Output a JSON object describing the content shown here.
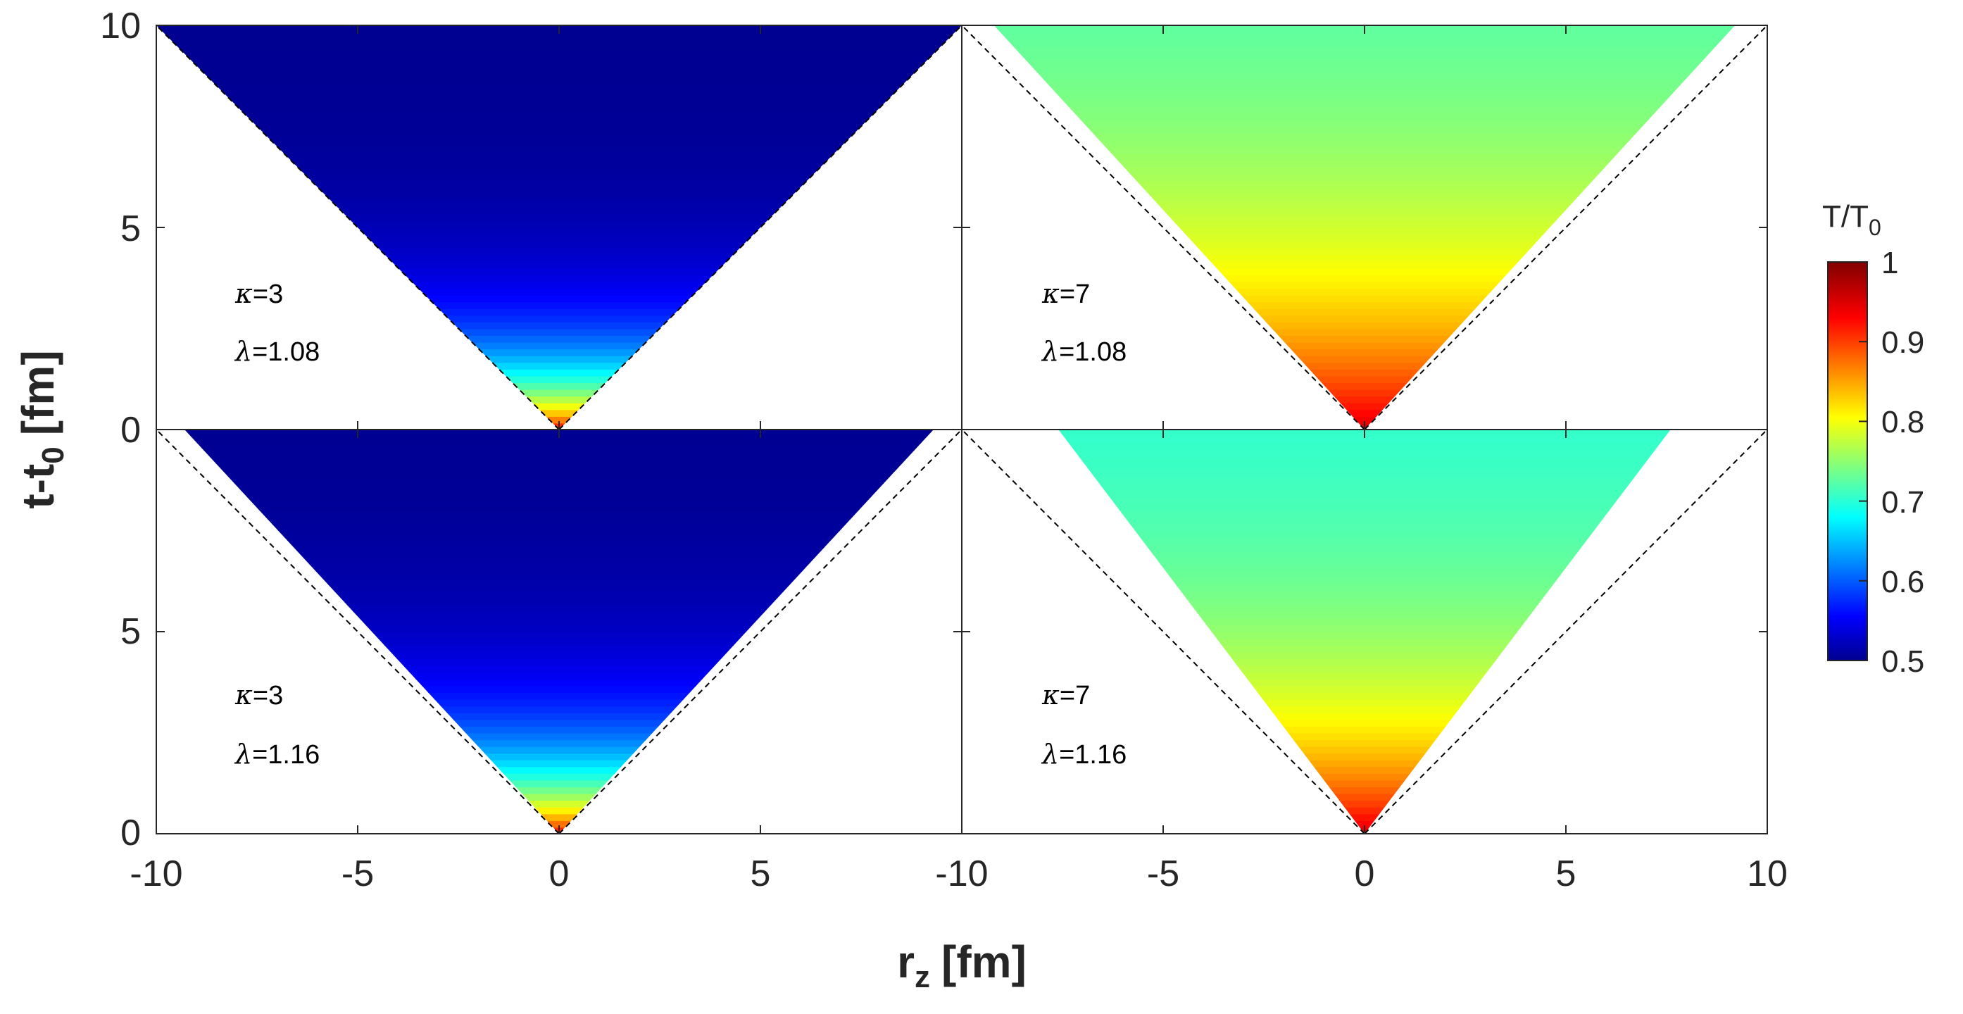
{
  "chart_data": {
    "type": "heatmap",
    "panels": [
      {
        "annotation": {
          "kappa_label": "κ",
          "kappa_value": "=3",
          "lambda_label": "λ",
          "lambda_value": "=1.08"
        },
        "outline_at_top": [
          -10.0,
          10.0
        ],
        "fill_profile": {
          "T_vertex": 0.93,
          "T_base": 0.5,
          "decay_fm": 1.6
        }
      },
      {
        "annotation": {
          "kappa_label": "κ",
          "kappa_value": "=7",
          "lambda_label": "λ",
          "lambda_value": "=1.08"
        },
        "outline_at_top": [
          -9.2,
          9.2
        ],
        "fill_profile": {
          "T_vertex": 0.95,
          "T_base": 0.7,
          "decay_fm": 4.5
        }
      },
      {
        "annotation": {
          "kappa_label": "κ",
          "kappa_value": "=3",
          "lambda_label": "λ",
          "lambda_value": "=1.16"
        },
        "outline_at_top": [
          -9.3,
          9.3
        ],
        "fill_profile": {
          "T_vertex": 0.93,
          "T_base": 0.5,
          "decay_fm": 1.8
        }
      },
      {
        "annotation": {
          "kappa_label": "κ",
          "kappa_value": "=7",
          "lambda_label": "λ",
          "lambda_value": "=1.16"
        },
        "outline_at_top": [
          -7.6,
          7.6
        ],
        "fill_profile": {
          "T_vertex": 0.95,
          "T_base": 0.69,
          "decay_fm": 3.5
        }
      }
    ],
    "x_axis": {
      "label_main": "r",
      "label_sub": "z",
      "label_unit": "[fm]",
      "range": [
        -10,
        10
      ],
      "ticks_left": [
        "-10",
        "-5",
        "0",
        "5"
      ],
      "ticks_right": [
        "-10",
        "-5",
        "0",
        "5",
        "10"
      ]
    },
    "y_axis": {
      "label_main": "t-t",
      "label_sub": "0",
      "label_unit": "[fm]",
      "range": [
        0,
        10
      ],
      "ticks_top": [
        "10",
        "5",
        "0"
      ],
      "ticks_bottom": [
        "5",
        "0"
      ]
    },
    "colorbar": {
      "title_main": "T/T",
      "title_sub": "0",
      "range": [
        0.5,
        1.0
      ],
      "ticks": [
        "1",
        "0.9",
        "0.8",
        "0.7",
        "0.6",
        "0.5"
      ],
      "colormap": "jet"
    },
    "light_cone": {
      "style": "dashed",
      "color": "#000000"
    }
  }
}
